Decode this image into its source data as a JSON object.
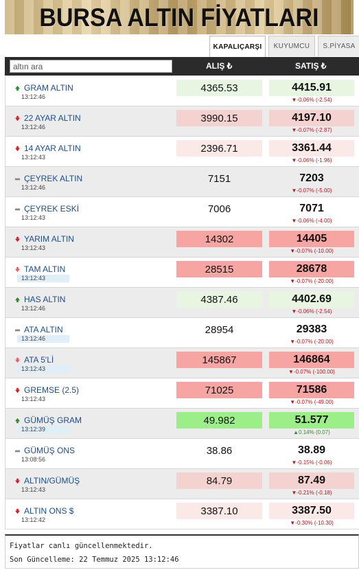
{
  "banner": {
    "title": "BURSA ALTIN FİYATLARI"
  },
  "tabs": [
    {
      "label": "KAPALIÇARŞI",
      "active": true
    },
    {
      "label": "KUYUMCU",
      "active": false
    },
    {
      "label": "S.PİYASA",
      "active": false
    }
  ],
  "header": {
    "search_value": "altın ara",
    "buy_label": "ALIŞ ₺",
    "sell_label": "SATIŞ ₺"
  },
  "colors": {
    "green_light": "#e8f5e1",
    "green_strong": "#9cee88",
    "red_light": "#fbe9e8",
    "red_mid": "#f4d2d0",
    "red_strong": "#f7a5a3",
    "up": "#2e8a2e",
    "down": "#c0121b"
  },
  "rows": [
    {
      "name": "GRAM ALTIN",
      "time": "13:12:46",
      "buy": "4365.53",
      "sell": "4415.91",
      "change": "▼-0.06% (-2.54)",
      "dir": "up",
      "bg": "green_light",
      "arrowColor": "#2e8a2e"
    },
    {
      "name": "22 AYAR ALTIN",
      "time": "13:12:46",
      "buy": "3990.15",
      "sell": "4197.10",
      "change": "▼-0.07% (-2.87)",
      "dir": "down",
      "bg": "red_mid",
      "arrowColor": "#d0202a"
    },
    {
      "name": "14 AYAR ALTIN",
      "time": "13:12:43",
      "buy": "2396.71",
      "sell": "3361.44",
      "change": "▼-0.06% (-1.96)",
      "dir": "down",
      "bg": "red_light",
      "arrowColor": "#d0202a"
    },
    {
      "name": "ÇEYREK ALTIN",
      "time": "13:12:46",
      "buy": "7151",
      "sell": "7203",
      "change": "▼-0.07% (-5.00)",
      "dir": "flat",
      "bg": "none",
      "arrowColor": "#888"
    },
    {
      "name": "ÇEYREK ESKİ",
      "time": "13:12:43",
      "buy": "7006",
      "sell": "7071",
      "change": "▼-0.06% (-4.00)",
      "dir": "flat",
      "bg": "none",
      "arrowColor": "#888"
    },
    {
      "name": "YARIM ALTIN",
      "time": "13:12:43",
      "buy": "14302",
      "sell": "14405",
      "change": "▼-0.07% (-10.00)",
      "dir": "down",
      "bg": "red_strong",
      "arrowColor": "#d0202a"
    },
    {
      "name": "TAM ALTIN",
      "time": "13:12:43",
      "buy": "28515",
      "sell": "28678",
      "change": "▼-0.07% (-20.00)",
      "dir": "down",
      "bg": "red_strong",
      "arrowColor": "#e06070",
      "hl": true
    },
    {
      "name": "HAS ALTIN",
      "time": "13:12:46",
      "buy": "4387.46",
      "sell": "4402.69",
      "change": "▼-0.06% (-2.54)",
      "dir": "up",
      "bg": "green_light",
      "arrowColor": "#2e8a2e"
    },
    {
      "name": "ATA ALTIN",
      "time": "13:12:46",
      "buy": "28954",
      "sell": "29383",
      "change": "▼-0.07% (-20.00)",
      "dir": "flat",
      "bg": "none",
      "arrowColor": "#888",
      "hl": true
    },
    {
      "name": "ATA 5'Lİ",
      "time": "13:12:43",
      "buy": "145867",
      "sell": "146864",
      "change": "▼-0.07% (-100.00)",
      "dir": "down",
      "bg": "red_strong",
      "arrowColor": "#e06070",
      "hl": true
    },
    {
      "name": "GREMSE (2.5)",
      "time": "13:12:43",
      "buy": "71025",
      "sell": "71586",
      "change": "▼-0.07% (-49.00)",
      "dir": "down",
      "bg": "red_strong",
      "arrowColor": "#d0202a"
    },
    {
      "name": "GÜMÜŞ GRAM",
      "time": "13:12:39",
      "buy": "49.982",
      "sell": "51.577",
      "change": "▲0.14% (0.07)",
      "dir": "up",
      "bg": "green_strong",
      "arrowColor": "#2e8a2e",
      "changeUp": true,
      "hl": true
    },
    {
      "name": "GÜMÜŞ ONS",
      "time": "13:08:56",
      "buy": "38.86",
      "sell": "38.89",
      "change": "▼-0.15% (-0.06)",
      "dir": "flat",
      "bg": "none",
      "arrowColor": "#888"
    },
    {
      "name": "ALTIN/GÜMÜŞ",
      "time": "13:12:43",
      "buy": "84.79",
      "sell": "87.49",
      "change": "▼-0.21% (-0.18)",
      "dir": "down",
      "bg": "red_mid",
      "arrowColor": "#d0202a"
    },
    {
      "name": "ALTIN ONS $",
      "time": "13:12:42",
      "buy": "3387.10",
      "sell": "3387.50",
      "change": "▼-0.30% (-10.30)",
      "dir": "down",
      "bg": "red_light",
      "arrowColor": "#d0202a"
    }
  ],
  "footer": {
    "line1": "Fiyatlar canlı güncellenmektedir.",
    "line2": "Son Güncelleme: 22 Temmuz 2025 13:12:46"
  }
}
